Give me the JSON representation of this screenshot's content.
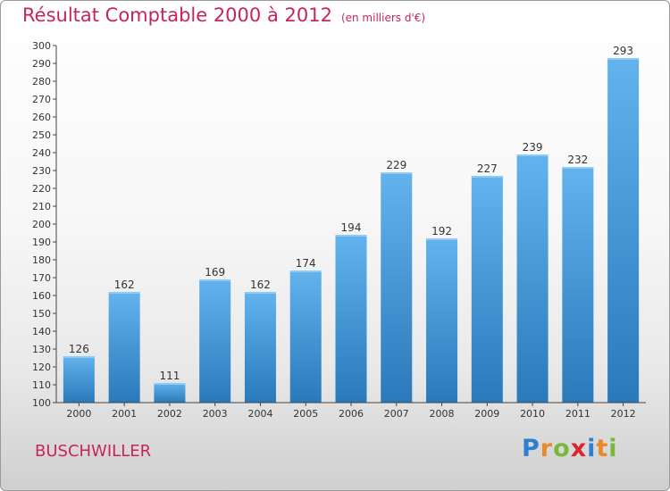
{
  "header": {
    "title": "Résultat Comptable 2000 à 2012",
    "unit": "(en milliers d'€)"
  },
  "commune": "BUSCHWILLER",
  "brand": {
    "logo_letters": [
      "P",
      "r",
      "o",
      "x",
      "i",
      "t",
      "i"
    ],
    "logo_colors": [
      "#2f7fd0",
      "#e8892a",
      "#7ab83a",
      "#d8262e",
      "#2f7fd0",
      "#e8892a",
      "#7ab83a"
    ]
  },
  "colors": {
    "title": "#c8245c",
    "bar_top": "#62b3ee",
    "bar_bottom": "#2a79ba"
  },
  "chart_data": {
    "type": "bar",
    "title": "Résultat Comptable 2000 à 2012",
    "categories": [
      "2000",
      "2001",
      "2002",
      "2003",
      "2004",
      "2005",
      "2006",
      "2007",
      "2008",
      "2009",
      "2010",
      "2011",
      "2012"
    ],
    "values": [
      126,
      162,
      111,
      169,
      162,
      174,
      194,
      229,
      192,
      227,
      239,
      232,
      293
    ],
    "ylim": [
      100,
      300
    ],
    "ytick_step": 10,
    "grid": false,
    "data_labels": true
  }
}
